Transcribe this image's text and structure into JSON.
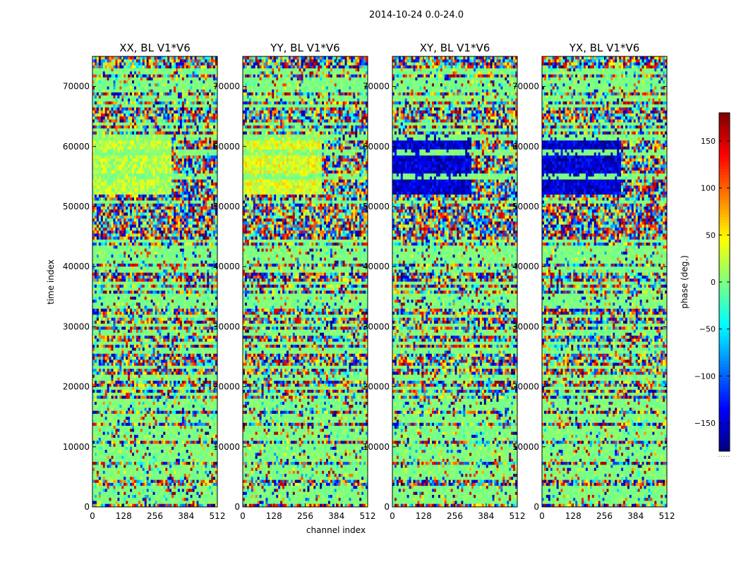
{
  "suptitle": "2014-10-24 0.0-24.0",
  "panels": [
    {
      "title": "XX, BL V1*V6"
    },
    {
      "title": "YY, BL V1*V6"
    },
    {
      "title": "XY, BL V1*V6"
    },
    {
      "title": "YX, BL V1*V6"
    }
  ],
  "xlabel": "channel index",
  "ylabel": "time index",
  "colorbar_label": "phase (deg.)",
  "colorbar_note": ".....",
  "colors": {
    "jet": [
      "#00007f",
      "#0000ff",
      "#007fff",
      "#00ffff",
      "#7fff7f",
      "#ffff00",
      "#ff7f00",
      "#ff0000",
      "#7f0000"
    ]
  },
  "chart_data": {
    "type": "heatmap",
    "colormap": "jet",
    "value_label": "phase (deg.)",
    "vlim": [
      -180,
      180
    ],
    "colorbar_ticks": [
      -150,
      -100,
      -50,
      0,
      50,
      100,
      150
    ],
    "x_ticks": [
      0,
      128,
      256,
      384,
      512
    ],
    "y_ticks": [
      0,
      10000,
      20000,
      30000,
      40000,
      50000,
      60000,
      70000
    ],
    "xlim": [
      0,
      512
    ],
    "ylim": [
      0,
      75000
    ],
    "structure": {
      "stable_band_time_range": [
        52000,
        62000
      ],
      "stable_band_channel_edge": 325,
      "noise_rows": [
        700,
        1200,
        1500,
        2100,
        2600,
        3300,
        5000,
        5800,
        6300,
        6800,
        7700,
        8300,
        8900,
        9500,
        10200,
        11500,
        12000,
        12700,
        13200,
        14200,
        15000,
        16300,
        17000,
        17800,
        18800,
        19900,
        21200,
        21800,
        23300,
        25700,
        26000,
        27300,
        28600,
        29300,
        30400,
        31900,
        33200,
        34000,
        34600,
        35300,
        36200,
        37400,
        39500,
        41000,
        41600,
        42500,
        43300,
        44200,
        50700,
        55000,
        59000,
        61500,
        62700,
        63800,
        66600,
        67800,
        68300,
        69300,
        69800,
        70400,
        71000,
        72500
      ],
      "panel_mean_phase": [
        20,
        35,
        -150,
        -150
      ]
    }
  }
}
